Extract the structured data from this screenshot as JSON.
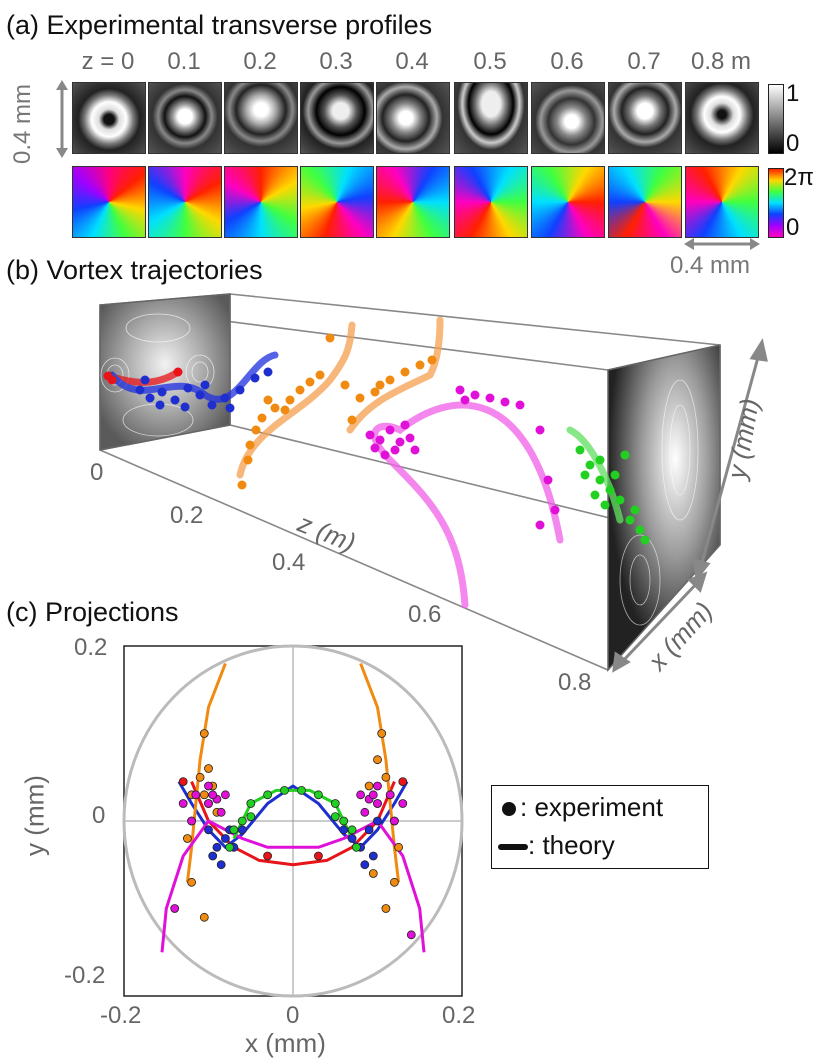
{
  "panel_a": {
    "title": "(a) Experimental transverse profiles",
    "z_labels": [
      "z = 0",
      "0.1",
      "0.2",
      "0.3",
      "0.4",
      "0.5",
      "0.6",
      "0.7",
      "0.8 m"
    ],
    "side_scale": "0.4 mm",
    "bottom_scale": "0.4 mm",
    "intensity_colorbar": {
      "max": "1",
      "min": "0"
    },
    "phase_colorbar": {
      "max": "2π",
      "min": "0"
    }
  },
  "panel_b": {
    "title": "(b) Vortex trajectories",
    "z_axis_label": "z (m)",
    "z_ticks": [
      "0",
      "0.2",
      "0.4",
      "0.6",
      "0.8"
    ],
    "y_axis_label": "y (mm)",
    "x_axis_label": "x (mm)"
  },
  "panel_c": {
    "title": "(c) Projections",
    "legend": {
      "experiment": ": experiment",
      "theory": ": theory"
    }
  },
  "colors": {
    "red": "#e8141a",
    "blue": "#1f2fcf",
    "orange": "#f08a10",
    "magenta": "#e010d8",
    "green": "#22d022",
    "circle": "#bbbbbb"
  },
  "chart_data": {
    "type": "scatter",
    "xlabel": "x (mm)",
    "ylabel": "y (mm)",
    "xlim": [
      -0.2,
      0.2
    ],
    "ylim": [
      -0.2,
      0.2
    ],
    "xticks": [
      "-0.2",
      "0",
      "0.2"
    ],
    "yticks": [
      "0.2",
      "0",
      "-0.2"
    ],
    "grid": "axes-lines-at-zero",
    "circle_radius": 0.2,
    "theory": [
      {
        "color": "red",
        "x": [
          -0.12,
          -0.1,
          -0.07,
          -0.04,
          0,
          0.04,
          0.07,
          0.1,
          0.12
        ],
        "y": [
          0.045,
          0.0,
          -0.03,
          -0.045,
          -0.05,
          -0.045,
          -0.03,
          0.0,
          0.045
        ]
      },
      {
        "color": "blue",
        "x": [
          -0.135,
          -0.12,
          -0.1,
          -0.08,
          -0.06,
          -0.03,
          0,
          0.03,
          0.06,
          0.08,
          0.1,
          0.12,
          0.135
        ],
        "y": [
          0.045,
          0.02,
          -0.01,
          -0.03,
          -0.015,
          0.02,
          0.04,
          0.02,
          -0.015,
          -0.03,
          -0.01,
          0.02,
          0.045
        ]
      },
      {
        "color": "orange",
        "x": [
          -0.08,
          -0.1,
          -0.11,
          -0.115,
          -0.12,
          -0.125
        ],
        "y": [
          0.18,
          0.13,
          0.07,
          0.02,
          -0.03,
          -0.07
        ]
      },
      {
        "color": "orange",
        "x": [
          0.08,
          0.1,
          0.11,
          0.115,
          0.12,
          0.125
        ],
        "y": [
          0.18,
          0.13,
          0.07,
          0.02,
          -0.03,
          -0.07
        ]
      },
      {
        "color": "magenta",
        "x": [
          -0.155,
          -0.15,
          -0.13,
          -0.1,
          -0.06,
          -0.03,
          0,
          0.03,
          0.06,
          0.1,
          0.13,
          0.15,
          0.155
        ],
        "y": [
          -0.15,
          -0.1,
          -0.04,
          0.0,
          -0.02,
          -0.03,
          -0.03,
          -0.03,
          -0.02,
          0.0,
          -0.04,
          -0.1,
          -0.15
        ]
      },
      {
        "color": "green",
        "x": [
          -0.07,
          -0.05,
          -0.02,
          0,
          0.02,
          0.05,
          0.07
        ],
        "y": [
          -0.02,
          0.02,
          0.035,
          0.035,
          0.035,
          0.02,
          -0.02
        ]
      }
    ],
    "experiment": [
      {
        "color": "red",
        "points": [
          [
            -0.03,
            -0.04
          ],
          [
            0.03,
            -0.04
          ],
          [
            -0.13,
            0.045
          ],
          [
            0.13,
            0.045
          ]
        ]
      },
      {
        "color": "blue",
        "points": [
          [
            -0.1,
            -0.01
          ],
          [
            -0.09,
            -0.03
          ],
          [
            -0.08,
            -0.02
          ],
          [
            -0.095,
            -0.04
          ],
          [
            -0.07,
            -0.03
          ],
          [
            -0.06,
            -0.01
          ],
          [
            -0.085,
            -0.05
          ],
          [
            -0.1,
            0.02
          ],
          [
            0.09,
            -0.01
          ],
          [
            0.08,
            -0.03
          ],
          [
            0.07,
            -0.02
          ],
          [
            0.095,
            -0.04
          ],
          [
            0.06,
            -0.01
          ],
          [
            0.085,
            -0.05
          ],
          [
            0.1,
            0.0
          ],
          [
            -0.075,
            -0.01
          ]
        ]
      },
      {
        "color": "orange",
        "points": [
          [
            -0.105,
            0.1
          ],
          [
            -0.1,
            0.06
          ],
          [
            -0.11,
            0.05
          ],
          [
            -0.12,
            0.03
          ],
          [
            -0.105,
            0.03
          ],
          [
            -0.12,
            0.0
          ],
          [
            -0.125,
            -0.02
          ],
          [
            -0.12,
            -0.07
          ],
          [
            -0.105,
            -0.11
          ],
          [
            -0.095,
            0.04
          ],
          [
            0.105,
            0.1
          ],
          [
            0.1,
            0.07
          ],
          [
            0.11,
            0.05
          ],
          [
            0.115,
            0.03
          ],
          [
            0.1,
            0.02
          ],
          [
            0.12,
            0.0
          ],
          [
            0.125,
            -0.03
          ],
          [
            0.12,
            -0.07
          ],
          [
            0.11,
            -0.1
          ],
          [
            0.09,
            0.04
          ],
          [
            -0.09,
            0.01
          ],
          [
            0.095,
            -0.06
          ]
        ]
      },
      {
        "color": "magenta",
        "points": [
          [
            -0.13,
            0.02
          ],
          [
            -0.115,
            0.03
          ],
          [
            -0.1,
            0.02
          ],
          [
            -0.09,
            0.025
          ],
          [
            -0.08,
            0.03
          ],
          [
            -0.12,
            0.0
          ],
          [
            -0.085,
            0.01
          ],
          [
            -0.1,
            0.04
          ],
          [
            -0.095,
            0.03
          ],
          [
            0.13,
            0.02
          ],
          [
            0.115,
            0.03
          ],
          [
            0.1,
            0.02
          ],
          [
            0.09,
            0.025
          ],
          [
            0.08,
            0.03
          ],
          [
            0.12,
            0.0
          ],
          [
            0.085,
            0.01
          ],
          [
            0.1,
            0.04
          ],
          [
            0.095,
            0.03
          ],
          [
            0.14,
            -0.13
          ],
          [
            -0.14,
            -0.1
          ]
        ]
      },
      {
        "color": "green",
        "points": [
          [
            -0.07,
            -0.01
          ],
          [
            -0.05,
            0.02
          ],
          [
            -0.03,
            0.03
          ],
          [
            -0.01,
            0.035
          ],
          [
            0.01,
            0.035
          ],
          [
            0.03,
            0.03
          ],
          [
            0.05,
            0.02
          ],
          [
            0.07,
            -0.01
          ],
          [
            -0.06,
            0.0
          ],
          [
            0.06,
            0.0
          ],
          [
            -0.075,
            -0.03
          ],
          [
            0.075,
            -0.03
          ],
          [
            0.05,
            0.005
          ],
          [
            -0.05,
            0.005
          ]
        ]
      }
    ]
  }
}
